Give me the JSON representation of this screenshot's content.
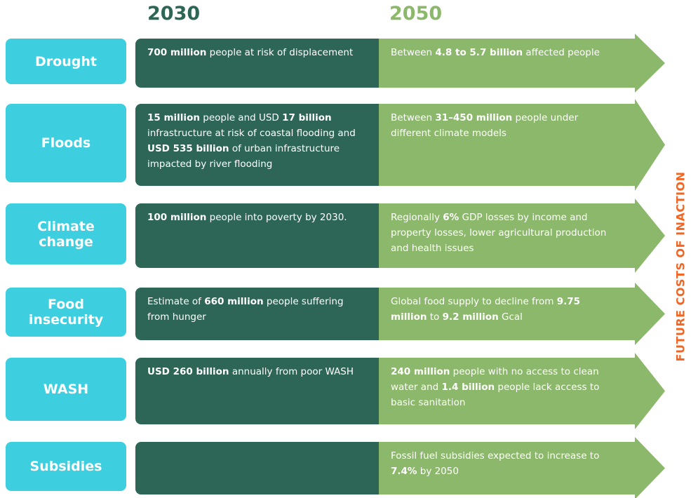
{
  "header": {
    "col1": "2030",
    "col2": "2050"
  },
  "side_label": "FUTURE COSTS OF INACTION",
  "rows": [
    {
      "label": "Drought",
      "y2030": [
        {
          "t": "700 million",
          "b": true
        },
        {
          "t": " people at risk of displacement",
          "b": false
        }
      ],
      "y2050": [
        {
          "t": "Between ",
          "b": false
        },
        {
          "t": "4.8 to 5.7 billion",
          "b": true
        },
        {
          "t": " affected people",
          "b": false
        }
      ]
    },
    {
      "label": "Floods",
      "y2030": [
        {
          "t": "15 million",
          "b": true
        },
        {
          "t": " people and USD ",
          "b": false
        },
        {
          "t": "17 billion",
          "b": true
        },
        {
          "t": " infrastructure at risk of coastal flooding and ",
          "b": false
        },
        {
          "t": "USD 535 billion",
          "b": true
        },
        {
          "t": " of urban infrastructure impacted by river flooding",
          "b": false
        }
      ],
      "y2050": [
        {
          "t": "Between ",
          "b": false
        },
        {
          "t": "31–450 million",
          "b": true
        },
        {
          "t": " people under different climate models",
          "b": false
        }
      ]
    },
    {
      "label": "Climate change",
      "y2030": [
        {
          "t": "100 million",
          "b": true
        },
        {
          "t": " people into poverty by 2030.",
          "b": false
        }
      ],
      "y2050": [
        {
          "t": "Regionally ",
          "b": false
        },
        {
          "t": "6%",
          "b": true
        },
        {
          "t": " GDP losses by income and property losses, lower agricultural production and health issues",
          "b": false
        }
      ]
    },
    {
      "label": "Food insecurity",
      "y2030": [
        {
          "t": "Estimate of ",
          "b": false
        },
        {
          "t": "660 million",
          "b": true
        },
        {
          "t": " people suffering from hunger",
          "b": false
        }
      ],
      "y2050": [
        {
          "t": "Global food supply to decline from ",
          "b": false
        },
        {
          "t": "9.75 million",
          "b": true
        },
        {
          "t": " to ",
          "b": false
        },
        {
          "t": "9.2 million",
          "b": true
        },
        {
          "t": " Gcal",
          "b": false
        }
      ]
    },
    {
      "label": "WASH",
      "y2030": [
        {
          "t": "USD 260 billion",
          "b": true
        },
        {
          "t": " annually from poor WASH",
          "b": false
        }
      ],
      "y2050": [
        {
          "t": "240 million",
          "b": true
        },
        {
          "t": " people with no access to clean water and ",
          "b": false
        },
        {
          "t": "1.4 billion",
          "b": true
        },
        {
          "t": " people lack access to basic sanitation",
          "b": false
        }
      ]
    },
    {
      "label": "Subsidies",
      "y2030": [],
      "y2050": [
        {
          "t": "Fossil fuel subsidies expected to increase to ",
          "b": false
        },
        {
          "t": "7.4%",
          "b": true
        },
        {
          "t": " by 2050",
          "b": false
        }
      ]
    }
  ]
}
